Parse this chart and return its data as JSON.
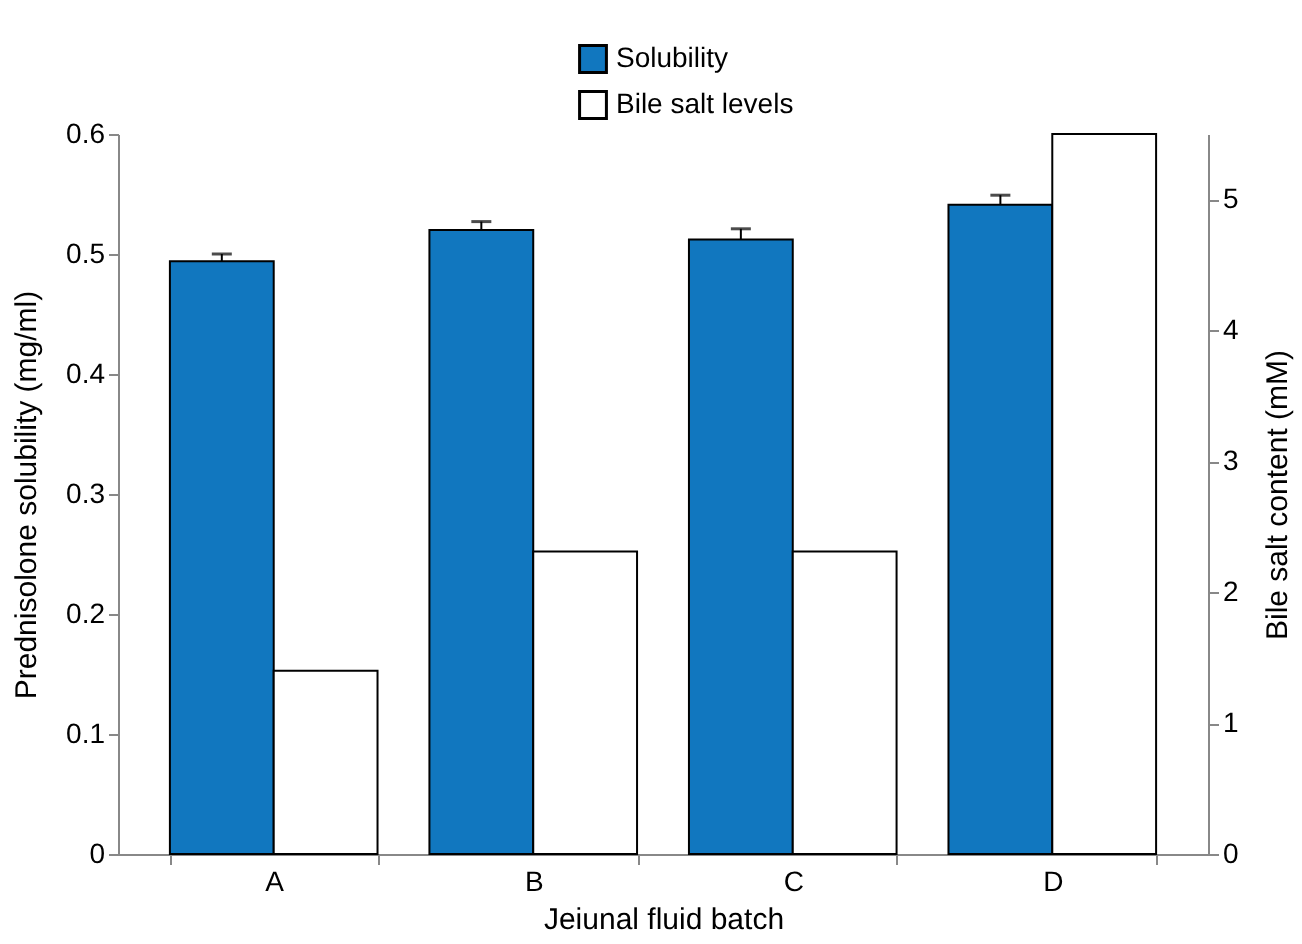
{
  "chart_data": {
    "type": "bar",
    "xlabel": "Jeiunal fluid batch",
    "ylabel": "Prednisolone solubility (mg/ml)",
    "y2label": "Bile salt content (mM)",
    "categories": [
      "A",
      "B",
      "C",
      "D"
    ],
    "series": [
      {
        "name": "Solubility",
        "color": "#1177bf",
        "values": [
          0.494,
          0.52,
          0.512,
          0.541
        ],
        "errors": [
          0.006,
          0.007,
          0.009,
          0.008
        ]
      },
      {
        "name": "Bile salt levels",
        "color": "#ffffff",
        "axis": "y2",
        "values": [
          1.4,
          2.31,
          2.31,
          5.5
        ]
      }
    ],
    "ylim": [
      0,
      0.6
    ],
    "yticks": [
      0,
      0.1,
      0.2,
      0.3,
      0.4,
      0.5,
      0.6
    ],
    "y2lim": [
      0,
      5.5
    ],
    "y2ticks": [
      0,
      1,
      2,
      3,
      4,
      5
    ],
    "grid": false,
    "legend": "top"
  }
}
